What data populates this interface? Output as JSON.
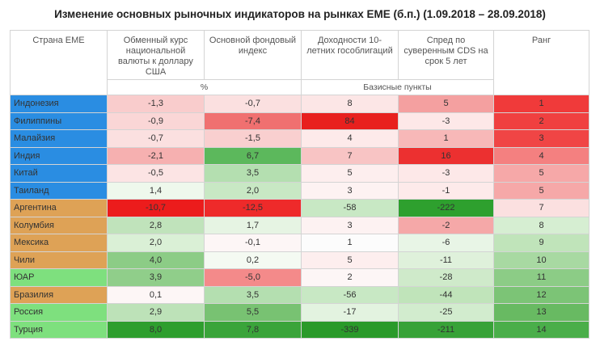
{
  "title": "Изменение основных рыночных индикаторов на рынках ЕМЕ (б.п.) (1.09.2018 – 28.09.2018)",
  "table": {
    "header": [
      "Страна ЕМЕ",
      "Обменный курс национальной валюты к доллару США",
      "Основной фондовый индекс",
      "Доходности 10-летних гособлигаций",
      "Спред по суверенным CDS на срок 5 лет",
      "Ранг"
    ],
    "units": [
      "%",
      "Базисные пункты"
    ],
    "rows": [
      {
        "country": "Индонезия",
        "color": "#2a8de2",
        "cells": [
          {
            "text": "-1,3",
            "color": "#f9cccc"
          },
          {
            "text": "-0,7",
            "color": "#fbe0e0"
          },
          {
            "text": "8",
            "color": "#fce6e6"
          },
          {
            "text": "5",
            "color": "#f4a0a0"
          },
          {
            "text": "1",
            "color": "#f03a3a"
          }
        ]
      },
      {
        "country": "Филиппины",
        "color": "#2a8de2",
        "cells": [
          {
            "text": "-0,9",
            "color": "#fad6d6"
          },
          {
            "text": "-7,4",
            "color": "#f07070"
          },
          {
            "text": "84",
            "color": "#e8201e"
          },
          {
            "text": "-3",
            "color": "#fde8e8"
          },
          {
            "text": "2",
            "color": "#f04040"
          }
        ]
      },
      {
        "country": "Малайзия",
        "color": "#2a8de2",
        "cells": [
          {
            "text": "-0,7",
            "color": "#fbe0e0"
          },
          {
            "text": "-1,5",
            "color": "#f9cfcf"
          },
          {
            "text": "4",
            "color": "#fdeaea"
          },
          {
            "text": "1",
            "color": "#f7b8b8"
          },
          {
            "text": "3",
            "color": "#f04545"
          }
        ]
      },
      {
        "country": "Индия",
        "color": "#2a8de2",
        "cells": [
          {
            "text": "-2,1",
            "color": "#f6b0b0"
          },
          {
            "text": "6,7",
            "color": "#5cb85c"
          },
          {
            "text": "7",
            "color": "#f8c4c4"
          },
          {
            "text": "16",
            "color": "#ec3030"
          },
          {
            "text": "4",
            "color": "#f48080"
          }
        ]
      },
      {
        "country": "Китай",
        "color": "#2a8de2",
        "cells": [
          {
            "text": "-0,5",
            "color": "#fce4e4"
          },
          {
            "text": "3,5",
            "color": "#b4dfb0"
          },
          {
            "text": "5",
            "color": "#fdeeee"
          },
          {
            "text": "-3",
            "color": "#fde8e8"
          },
          {
            "text": "5",
            "color": "#f6a8a8"
          }
        ]
      },
      {
        "country": "Таиланд",
        "color": "#2a8de2",
        "cells": [
          {
            "text": "1,4",
            "color": "#eef8ec"
          },
          {
            "text": "2,0",
            "color": "#c8e8c4"
          },
          {
            "text": "3",
            "color": "#fdf2f2"
          },
          {
            "text": "-1",
            "color": "#fdeaea"
          },
          {
            "text": "5",
            "color": "#f6a8a8"
          }
        ]
      },
      {
        "country": "Аргентина",
        "color": "#dea256",
        "cells": [
          {
            "text": "-10,7",
            "color": "#ec1c1c"
          },
          {
            "text": "-12,5",
            "color": "#ee2a2a"
          },
          {
            "text": "-58",
            "color": "#c8e8c4"
          },
          {
            "text": "-222",
            "color": "#2ea02e"
          },
          {
            "text": "7",
            "color": "#fbe0e0"
          }
        ]
      },
      {
        "country": "Колумбия",
        "color": "#dea256",
        "cells": [
          {
            "text": "2,8",
            "color": "#c0e3bb"
          },
          {
            "text": "1,7",
            "color": "#e6f4e3"
          },
          {
            "text": "3",
            "color": "#fdf2f2"
          },
          {
            "text": "-2",
            "color": "#f5a8a8"
          },
          {
            "text": "8",
            "color": "#d6eed2"
          }
        ]
      },
      {
        "country": "Мексика",
        "color": "#dea256",
        "cells": [
          {
            "text": "2,0",
            "color": "#daf0d6"
          },
          {
            "text": "-0,1",
            "color": "#fdf6f6"
          },
          {
            "text": "1",
            "color": "#fcfcfc"
          },
          {
            "text": "-6",
            "color": "#e8f5e6"
          },
          {
            "text": "9",
            "color": "#c0e4ba"
          }
        ]
      },
      {
        "country": "Чили",
        "color": "#dea256",
        "cells": [
          {
            "text": "4,0",
            "color": "#8ccc86"
          },
          {
            "text": "0,2",
            "color": "#f4faf2"
          },
          {
            "text": "5",
            "color": "#fdeeee"
          },
          {
            "text": "-11",
            "color": "#dff1db"
          },
          {
            "text": "10",
            "color": "#a8d9a2"
          }
        ]
      },
      {
        "country": "ЮАР",
        "color": "#7ee07e",
        "cells": [
          {
            "text": "3,9",
            "color": "#90ce8a"
          },
          {
            "text": "-5,0",
            "color": "#f48a8a"
          },
          {
            "text": "2",
            "color": "#fdf6f6"
          },
          {
            "text": "-28",
            "color": "#cfeaca"
          },
          {
            "text": "11",
            "color": "#8ccc86"
          }
        ]
      },
      {
        "country": "Бразилия",
        "color": "#dea256",
        "cells": [
          {
            "text": "0,1",
            "color": "#fdf6f6"
          },
          {
            "text": "3,5",
            "color": "#b4dfb0"
          },
          {
            "text": "-56",
            "color": "#c8e8c4"
          },
          {
            "text": "-44",
            "color": "#c0e4ba"
          },
          {
            "text": "12",
            "color": "#7cc476"
          }
        ]
      },
      {
        "country": "Россия",
        "color": "#7ee07e",
        "cells": [
          {
            "text": "2,9",
            "color": "#bde2b8"
          },
          {
            "text": "5,5",
            "color": "#78c272"
          },
          {
            "text": "-17",
            "color": "#e3f3e0"
          },
          {
            "text": "-25",
            "color": "#d2ecce"
          },
          {
            "text": "13",
            "color": "#68ba62"
          }
        ]
      },
      {
        "country": "Турция",
        "color": "#7ee07e",
        "cells": [
          {
            "text": "8,0",
            "color": "#2e9e2e"
          },
          {
            "text": "7,8",
            "color": "#3aa43a"
          },
          {
            "text": "-339",
            "color": "#2a9a2a"
          },
          {
            "text": "-211",
            "color": "#38a238"
          },
          {
            "text": "14",
            "color": "#4aae4a"
          }
        ]
      }
    ]
  }
}
